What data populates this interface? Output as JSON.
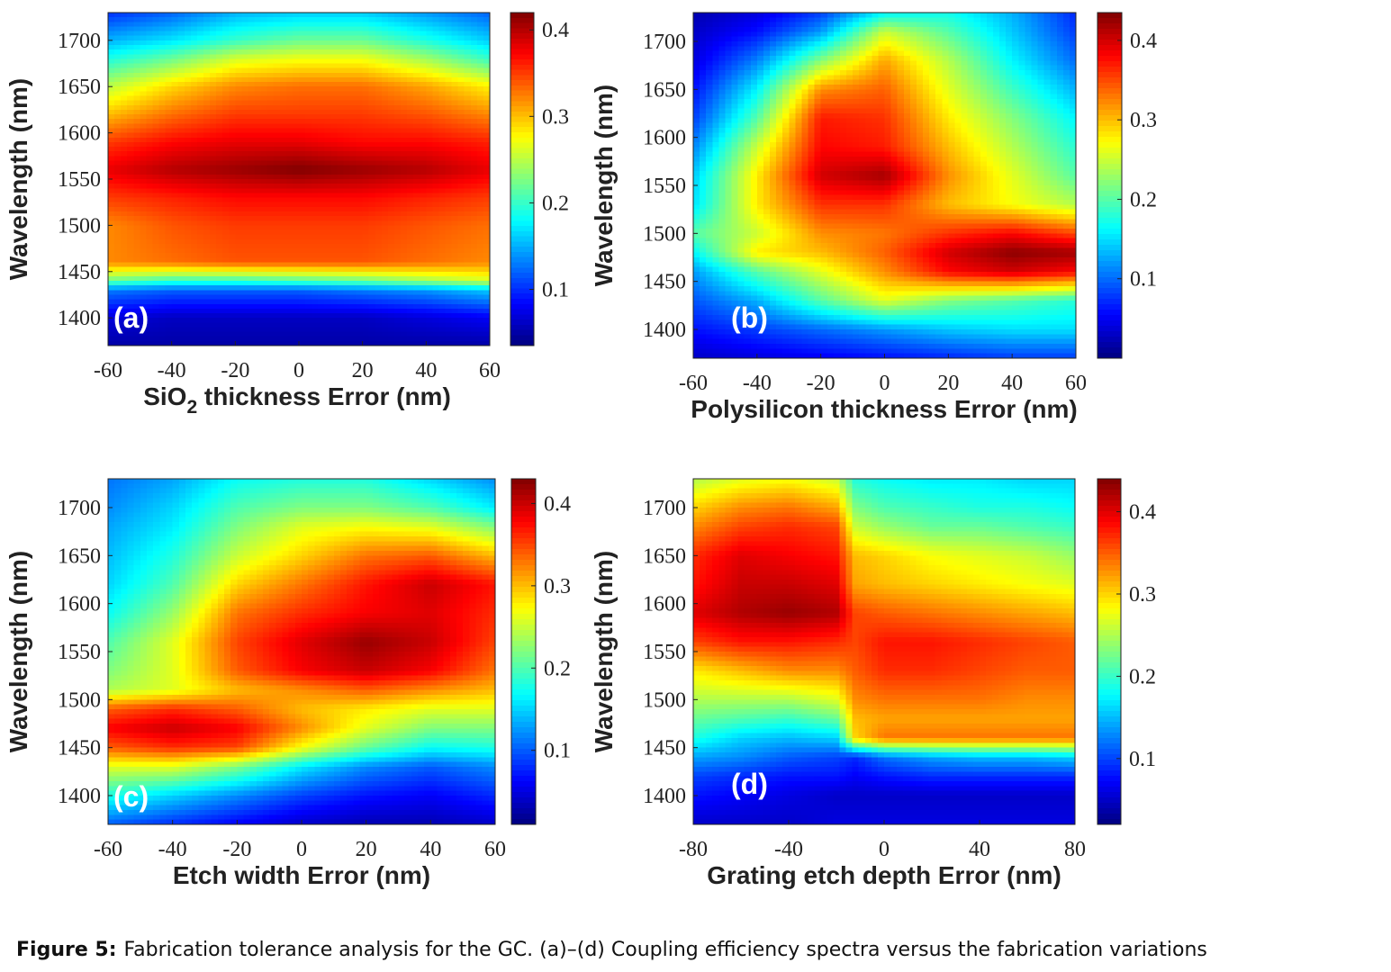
{
  "figure": {
    "caption_label": "Figure 5:",
    "caption_text": "Fabrication tolerance analysis for the GC. (a)–(d) Coupling efficiency spectra versus the fabrication variations"
  },
  "chart_data": [
    {
      "type": "heatmap",
      "panel_label": "(a)",
      "xlabel": "SiO₂ thickness Error (nm)",
      "xlabel_main": "SiO",
      "xlabel_sub": "2",
      "xlabel_rest": " thickness Error (nm)",
      "ylabel": "Wavelength (nm)",
      "xlim": [
        -60,
        60
      ],
      "ylim": [
        1370,
        1730
      ],
      "xticks": [
        -60,
        -40,
        -20,
        0,
        20,
        40,
        60
      ],
      "yticks": [
        1400,
        1450,
        1500,
        1550,
        1600,
        1650,
        1700
      ],
      "clim": [
        0.035,
        0.42
      ],
      "cticks": [
        0.1,
        0.2,
        0.3,
        0.4
      ],
      "colormap": "jet",
      "x": [
        -60,
        -40,
        -20,
        0,
        20,
        40,
        60
      ],
      "y": [
        1370,
        1400,
        1430,
        1440,
        1460,
        1500,
        1530,
        1560,
        1590,
        1620,
        1650,
        1680,
        1700,
        1730
      ],
      "z": [
        [
          0.05,
          0.05,
          0.05,
          0.05,
          0.05,
          0.05,
          0.05
        ],
        [
          0.07,
          0.06,
          0.06,
          0.06,
          0.06,
          0.07,
          0.08
        ],
        [
          0.13,
          0.12,
          0.12,
          0.12,
          0.13,
          0.14,
          0.16
        ],
        [
          0.22,
          0.2,
          0.2,
          0.21,
          0.22,
          0.24,
          0.26
        ],
        [
          0.32,
          0.33,
          0.34,
          0.34,
          0.34,
          0.33,
          0.32
        ],
        [
          0.32,
          0.34,
          0.35,
          0.35,
          0.35,
          0.34,
          0.33
        ],
        [
          0.35,
          0.36,
          0.37,
          0.37,
          0.37,
          0.36,
          0.35
        ],
        [
          0.38,
          0.4,
          0.41,
          0.42,
          0.41,
          0.4,
          0.38
        ],
        [
          0.35,
          0.37,
          0.38,
          0.38,
          0.37,
          0.37,
          0.36
        ],
        [
          0.3,
          0.33,
          0.35,
          0.35,
          0.35,
          0.34,
          0.32
        ],
        [
          0.25,
          0.29,
          0.32,
          0.33,
          0.33,
          0.31,
          0.28
        ],
        [
          0.19,
          0.22,
          0.26,
          0.27,
          0.27,
          0.24,
          0.2
        ],
        [
          0.15,
          0.17,
          0.2,
          0.22,
          0.22,
          0.19,
          0.16
        ],
        [
          0.1,
          0.12,
          0.15,
          0.16,
          0.16,
          0.14,
          0.12
        ]
      ]
    },
    {
      "type": "heatmap",
      "panel_label": "(b)",
      "xlabel": "Polysilicon thickness Error (nm)",
      "ylabel": "Wavelength (nm)",
      "xlim": [
        -60,
        60
      ],
      "ylim": [
        1370,
        1730
      ],
      "xticks": [
        -60,
        -40,
        -20,
        0,
        20,
        40,
        60
      ],
      "yticks": [
        1400,
        1450,
        1500,
        1550,
        1600,
        1650,
        1700
      ],
      "clim": [
        0.0,
        0.435
      ],
      "cticks": [
        0.1,
        0.2,
        0.3,
        0.4
      ],
      "colormap": "jet",
      "x": [
        -60,
        -40,
        -20,
        0,
        20,
        40,
        60
      ],
      "y": [
        1370,
        1400,
        1430,
        1460,
        1480,
        1500,
        1530,
        1560,
        1590,
        1620,
        1650,
        1680,
        1710,
        1730
      ],
      "z": [
        [
          0.03,
          0.04,
          0.05,
          0.06,
          0.07,
          0.08,
          0.08
        ],
        [
          0.06,
          0.08,
          0.1,
          0.12,
          0.14,
          0.15,
          0.15
        ],
        [
          0.09,
          0.13,
          0.2,
          0.26,
          0.22,
          0.2,
          0.18
        ],
        [
          0.12,
          0.2,
          0.26,
          0.32,
          0.38,
          0.4,
          0.38
        ],
        [
          0.16,
          0.28,
          0.3,
          0.34,
          0.4,
          0.43,
          0.42
        ],
        [
          0.2,
          0.25,
          0.32,
          0.33,
          0.36,
          0.38,
          0.35
        ],
        [
          0.15,
          0.28,
          0.36,
          0.36,
          0.3,
          0.27,
          0.24
        ],
        [
          0.14,
          0.28,
          0.4,
          0.42,
          0.32,
          0.26,
          0.2
        ],
        [
          0.11,
          0.25,
          0.38,
          0.37,
          0.3,
          0.24,
          0.18
        ],
        [
          0.08,
          0.2,
          0.37,
          0.36,
          0.28,
          0.22,
          0.16
        ],
        [
          0.06,
          0.16,
          0.32,
          0.34,
          0.26,
          0.19,
          0.13
        ],
        [
          0.04,
          0.11,
          0.22,
          0.31,
          0.24,
          0.16,
          0.1
        ],
        [
          0.03,
          0.06,
          0.12,
          0.25,
          0.2,
          0.14,
          0.08
        ],
        [
          0.02,
          0.04,
          0.08,
          0.16,
          0.17,
          0.13,
          0.07
        ]
      ]
    },
    {
      "type": "heatmap",
      "panel_label": "(c)",
      "xlabel": "Etch width Error (nm)",
      "ylabel": "Wavelength (nm)",
      "xlim": [
        -60,
        60
      ],
      "ylim": [
        1370,
        1730
      ],
      "xticks": [
        -60,
        -40,
        -20,
        0,
        20,
        40,
        60
      ],
      "yticks": [
        1400,
        1450,
        1500,
        1550,
        1600,
        1650,
        1700
      ],
      "clim": [
        0.01,
        0.43
      ],
      "cticks": [
        0.1,
        0.2,
        0.3,
        0.4
      ],
      "colormap": "jet",
      "x": [
        -60,
        -40,
        -20,
        0,
        20,
        40,
        60
      ],
      "y": [
        1370,
        1400,
        1430,
        1450,
        1470,
        1490,
        1510,
        1530,
        1560,
        1590,
        1620,
        1650,
        1680,
        1700,
        1730
      ],
      "z": [
        [
          0.1,
          0.08,
          0.06,
          0.04,
          0.03,
          0.03,
          0.04
        ],
        [
          0.18,
          0.15,
          0.12,
          0.09,
          0.07,
          0.06,
          0.08
        ],
        [
          0.26,
          0.26,
          0.22,
          0.16,
          0.12,
          0.1,
          0.12
        ],
        [
          0.34,
          0.36,
          0.35,
          0.27,
          0.21,
          0.17,
          0.18
        ],
        [
          0.38,
          0.4,
          0.38,
          0.32,
          0.26,
          0.22,
          0.22
        ],
        [
          0.34,
          0.36,
          0.34,
          0.3,
          0.28,
          0.26,
          0.26
        ],
        [
          0.24,
          0.26,
          0.3,
          0.32,
          0.34,
          0.32,
          0.3
        ],
        [
          0.22,
          0.26,
          0.34,
          0.38,
          0.4,
          0.38,
          0.33
        ],
        [
          0.2,
          0.26,
          0.35,
          0.39,
          0.42,
          0.4,
          0.35
        ],
        [
          0.17,
          0.23,
          0.33,
          0.36,
          0.38,
          0.39,
          0.36
        ],
        [
          0.15,
          0.2,
          0.29,
          0.33,
          0.37,
          0.4,
          0.37
        ],
        [
          0.14,
          0.18,
          0.25,
          0.29,
          0.33,
          0.34,
          0.3
        ],
        [
          0.13,
          0.16,
          0.22,
          0.26,
          0.27,
          0.26,
          0.22
        ],
        [
          0.12,
          0.15,
          0.2,
          0.22,
          0.22,
          0.2,
          0.16
        ],
        [
          0.11,
          0.13,
          0.17,
          0.18,
          0.18,
          0.15,
          0.12
        ]
      ]
    },
    {
      "type": "heatmap",
      "panel_label": "(d)",
      "xlabel": "Grating etch depth Error (nm)",
      "ylabel": "Wavelength (nm)",
      "xlim": [
        -80,
        80
      ],
      "ylim": [
        1370,
        1730
      ],
      "xticks": [
        -80,
        -40,
        0,
        40,
        80
      ],
      "yticks": [
        1400,
        1450,
        1500,
        1550,
        1600,
        1650,
        1700
      ],
      "clim": [
        0.02,
        0.44
      ],
      "cticks": [
        0.1,
        0.2,
        0.3,
        0.4
      ],
      "colormap": "jet",
      "x": [
        -80,
        -60,
        -40,
        -20,
        -12,
        0,
        20,
        40,
        60,
        80
      ],
      "y": [
        1370,
        1400,
        1420,
        1440,
        1460,
        1480,
        1500,
        1530,
        1560,
        1590,
        1620,
        1650,
        1680,
        1700,
        1730
      ],
      "z": [
        [
          0.05,
          0.05,
          0.05,
          0.06,
          0.06,
          0.06,
          0.06,
          0.06,
          0.06,
          0.06
        ],
        [
          0.08,
          0.07,
          0.06,
          0.05,
          0.05,
          0.05,
          0.05,
          0.05,
          0.05,
          0.05
        ],
        [
          0.1,
          0.09,
          0.08,
          0.08,
          0.07,
          0.08,
          0.09,
          0.09,
          0.09,
          0.09
        ],
        [
          0.14,
          0.13,
          0.11,
          0.1,
          0.09,
          0.12,
          0.14,
          0.15,
          0.15,
          0.16
        ],
        [
          0.19,
          0.16,
          0.15,
          0.16,
          0.3,
          0.34,
          0.34,
          0.34,
          0.34,
          0.34
        ],
        [
          0.22,
          0.21,
          0.2,
          0.22,
          0.31,
          0.32,
          0.32,
          0.32,
          0.32,
          0.32
        ],
        [
          0.25,
          0.25,
          0.25,
          0.27,
          0.33,
          0.34,
          0.34,
          0.34,
          0.33,
          0.33
        ],
        [
          0.29,
          0.31,
          0.33,
          0.33,
          0.35,
          0.37,
          0.37,
          0.36,
          0.35,
          0.35
        ],
        [
          0.36,
          0.38,
          0.38,
          0.37,
          0.36,
          0.38,
          0.38,
          0.37,
          0.36,
          0.35
        ],
        [
          0.4,
          0.42,
          0.43,
          0.42,
          0.36,
          0.35,
          0.34,
          0.33,
          0.32,
          0.31
        ],
        [
          0.38,
          0.41,
          0.41,
          0.4,
          0.32,
          0.31,
          0.3,
          0.29,
          0.28,
          0.27
        ],
        [
          0.37,
          0.4,
          0.39,
          0.38,
          0.31,
          0.3,
          0.28,
          0.27,
          0.26,
          0.24
        ],
        [
          0.33,
          0.36,
          0.37,
          0.36,
          0.26,
          0.24,
          0.22,
          0.22,
          0.21,
          0.2
        ],
        [
          0.3,
          0.33,
          0.34,
          0.32,
          0.23,
          0.21,
          0.2,
          0.19,
          0.19,
          0.18
        ],
        [
          0.25,
          0.27,
          0.28,
          0.26,
          0.19,
          0.18,
          0.17,
          0.17,
          0.16,
          0.16
        ]
      ]
    }
  ]
}
